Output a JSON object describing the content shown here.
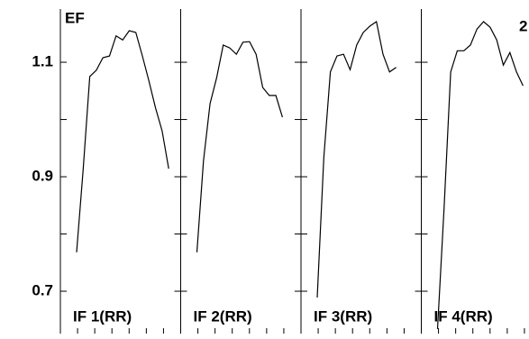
{
  "chart_data": [
    {
      "type": "line",
      "ylabel": "EF",
      "panel_label": "IF 1(RR)",
      "color": "#000000",
      "values": [
        0.768,
        0.913,
        1.075,
        1.086,
        1.108,
        1.111,
        1.146,
        1.139,
        1.155,
        1.152,
        1.111,
        1.067,
        1.02,
        0.98,
        0.914
      ],
      "ylim": [
        0.626,
        1.193
      ],
      "yticks": [
        0.7,
        0.9,
        1.1
      ],
      "yticks_minor": [
        0.8,
        1.0
      ]
    },
    {
      "type": "line",
      "panel_label": "IF 2(RR)",
      "color": "#000000",
      "values": [
        0.768,
        0.928,
        1.028,
        1.073,
        1.13,
        1.125,
        1.114,
        1.135,
        1.136,
        1.114,
        1.056,
        1.042,
        1.042,
        1.004
      ],
      "ylim": [
        0.626,
        1.193
      ],
      "yticks": [
        0.7,
        0.9,
        1.1
      ],
      "yticks_minor": [
        0.8,
        1.0
      ]
    },
    {
      "type": "line",
      "panel_label": "IF 3(RR)",
      "color": "#000000",
      "values": [
        0.689,
        0.933,
        1.083,
        1.111,
        1.114,
        1.087,
        1.13,
        1.152,
        1.163,
        1.171,
        1.114,
        1.083,
        1.091
      ],
      "ylim": [
        0.626,
        1.193
      ],
      "yticks": [
        0.7,
        0.9,
        1.1
      ],
      "yticks_minor": [
        0.8,
        1.0
      ]
    },
    {
      "type": "line",
      "panel_label": "IF 4(RR)",
      "color": "#000000",
      "values": [
        0.634,
        0.846,
        1.083,
        1.12,
        1.12,
        1.13,
        1.158,
        1.171,
        1.161,
        1.139,
        1.095,
        1.117,
        1.083,
        1.059
      ],
      "ylim": [
        0.626,
        1.193
      ],
      "yticks": [
        0.7,
        0.9,
        1.1
      ],
      "yticks_minor": [
        0.8,
        1.0
      ]
    }
  ],
  "corner_label": "2"
}
